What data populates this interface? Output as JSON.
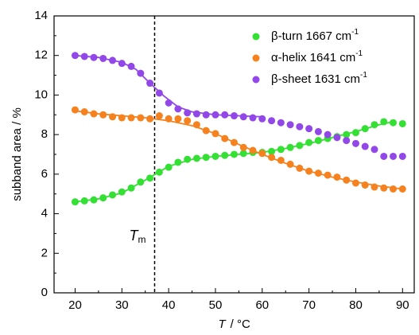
{
  "chart_data": {
    "type": "scatter",
    "y_label": "subband area / %",
    "x_label": {
      "italic": "T",
      "rest": "/ °C"
    },
    "xlim": [
      15.5,
      92.5
    ],
    "xticks": [
      20,
      30,
      40,
      50,
      60,
      70,
      80,
      90
    ],
    "ylim": [
      0,
      14
    ],
    "yticks": [
      0,
      2,
      4,
      6,
      8,
      10,
      12,
      14
    ],
    "marker": {
      "x": 37,
      "label": "T",
      "label_sub": "m"
    },
    "legend": "upper right",
    "x": [
      20,
      22,
      24,
      26,
      28,
      30,
      32,
      34,
      36,
      38,
      40,
      42,
      44,
      46,
      48,
      50,
      52,
      54,
      56,
      58,
      60,
      62,
      64,
      66,
      68,
      70,
      72,
      74,
      76,
      78,
      80,
      82,
      84,
      86,
      88,
      90
    ],
    "series": [
      {
        "name": "β-turn 1667 cm",
        "name_sup": "-1",
        "color": "#33e033",
        "values": [
          4.6,
          4.65,
          4.7,
          4.8,
          4.95,
          5.1,
          5.3,
          5.6,
          5.8,
          6.1,
          6.35,
          6.6,
          6.75,
          6.8,
          6.85,
          6.9,
          6.95,
          7.0,
          7.05,
          7.1,
          7.1,
          7.15,
          7.25,
          7.35,
          7.45,
          7.6,
          7.7,
          7.8,
          7.9,
          8.0,
          8.1,
          8.3,
          8.5,
          8.65,
          8.6,
          8.55
        ],
        "fit": {
          "x": [
            20,
            25,
            30,
            35,
            40,
            45,
            50,
            55,
            60,
            65,
            70,
            75,
            80,
            85,
            88
          ],
          "values": [
            4.6,
            4.75,
            5.05,
            5.7,
            6.4,
            6.75,
            6.9,
            7.0,
            7.1,
            7.3,
            7.55,
            7.85,
            8.15,
            8.5,
            8.65
          ]
        }
      },
      {
        "name": "α-helix 1641 cm",
        "name_sup": "-1",
        "color": "#f5821f",
        "values": [
          9.25,
          9.15,
          9.05,
          9.0,
          8.9,
          8.85,
          8.85,
          8.85,
          8.8,
          8.95,
          8.8,
          8.8,
          8.7,
          8.5,
          8.2,
          8.05,
          7.8,
          7.6,
          7.35,
          7.2,
          7.05,
          6.85,
          6.7,
          6.5,
          6.3,
          6.15,
          6.05,
          5.95,
          5.85,
          5.7,
          5.55,
          5.45,
          5.35,
          5.3,
          5.25,
          5.25
        ],
        "fit": {
          "x": [
            20,
            25,
            30,
            35,
            40,
            45,
            50,
            55,
            60,
            65,
            70,
            75,
            80,
            85,
            90
          ],
          "values": [
            9.2,
            9.05,
            8.95,
            8.85,
            8.7,
            8.45,
            8.05,
            7.5,
            7.0,
            6.55,
            6.15,
            5.85,
            5.6,
            5.4,
            5.25
          ]
        }
      },
      {
        "name": "β-sheet 1631 cm",
        "name_sup": "-1",
        "color": "#9247e8",
        "values": [
          12.0,
          11.95,
          11.9,
          11.85,
          11.75,
          11.6,
          11.45,
          11.1,
          10.6,
          10.1,
          9.6,
          9.3,
          9.1,
          9.05,
          9.0,
          9.0,
          9.0,
          8.95,
          8.9,
          8.85,
          8.8,
          8.7,
          8.6,
          8.5,
          8.4,
          8.3,
          8.15,
          8.0,
          7.85,
          7.7,
          7.55,
          7.4,
          7.25,
          6.9,
          6.9,
          6.9
        ],
        "fit": {
          "x": [
            20,
            25,
            30,
            33,
            36,
            39,
            42,
            45,
            50,
            55,
            60
          ],
          "values": [
            12.0,
            11.9,
            11.65,
            11.3,
            10.6,
            9.95,
            9.4,
            9.15,
            9.0,
            8.95,
            8.9
          ]
        }
      }
    ]
  }
}
